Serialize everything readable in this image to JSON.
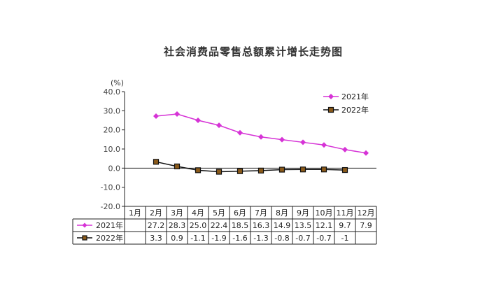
{
  "chart_data": {
    "type": "line",
    "title": "社会消费品零售总额累计增长走势图",
    "unit": "(%)",
    "categories": [
      "1月",
      "2月",
      "3月",
      "4月",
      "5月",
      "6月",
      "7月",
      "8月",
      "9月",
      "10月",
      "11月",
      "12月"
    ],
    "ylim": [
      -20,
      40
    ],
    "yticks": [
      "40.0",
      "30.0",
      "20.0",
      "10.0",
      "0.0",
      "-10.0",
      "-20.0"
    ],
    "grid": false,
    "legend_position": "top-right",
    "series": [
      {
        "name": "2021年",
        "color": "#d633d6",
        "marker": "diamond",
        "values": [
          null,
          27.2,
          28.3,
          25.0,
          22.4,
          18.5,
          16.3,
          14.9,
          13.5,
          12.1,
          9.7,
          7.9
        ],
        "labels": [
          "",
          "27.2",
          "28.3",
          "25.0",
          "22.4",
          "18.5",
          "16.3",
          "14.9",
          "13.5",
          "12.1",
          "9.7",
          "7.9"
        ]
      },
      {
        "name": "2022年",
        "color": "#111111",
        "marker": "square",
        "values": [
          null,
          3.3,
          0.9,
          -1.1,
          -1.9,
          -1.6,
          -1.3,
          -0.8,
          -0.7,
          -0.7,
          -1.0,
          null
        ],
        "labels": [
          "",
          "3.3",
          "0.9",
          "-1.1",
          "-1.9",
          "-1.6",
          "-1.3",
          "-0.8",
          "-0.7",
          "-0.7",
          "-1",
          ""
        ]
      }
    ]
  }
}
